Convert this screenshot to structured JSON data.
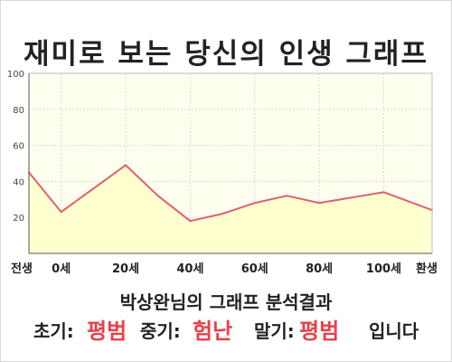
{
  "title": "재미로 보는 당신의 인생 그래프",
  "subtitle": "박상완님의 그래프 분석결과",
  "result": {
    "early_label": "초기:",
    "early_value": "평범",
    "mid_label": "중기:",
    "mid_value": "험난",
    "late_label": "말기:",
    "late_value": "평범",
    "ending": "입니다"
  },
  "colors": {
    "line": "#e06070",
    "fill": "#ffffd0",
    "fill_top": "#fffff0",
    "grid": "#d8d8d8",
    "highlight": "#e8404a"
  },
  "chart_data": {
    "type": "area",
    "x": [
      -10,
      0,
      20,
      30,
      40,
      50,
      60,
      70,
      80,
      90,
      100,
      115
    ],
    "values": [
      45,
      23,
      49,
      32,
      18,
      22,
      28,
      32,
      28,
      31,
      34,
      24
    ],
    "x_ticks": [
      {
        "x": -10,
        "label": "전생"
      },
      {
        "x": 0,
        "label": "0세"
      },
      {
        "x": 20,
        "label": "20세"
      },
      {
        "x": 40,
        "label": "40세"
      },
      {
        "x": 60,
        "label": "60세"
      },
      {
        "x": 80,
        "label": "80세"
      },
      {
        "x": 100,
        "label": "100세"
      },
      {
        "x": 115,
        "label": "환생"
      }
    ],
    "y_ticks": [
      20,
      40,
      60,
      80,
      100
    ],
    "xlim": [
      -10,
      115
    ],
    "ylim": [
      0,
      100
    ],
    "grid": true
  }
}
